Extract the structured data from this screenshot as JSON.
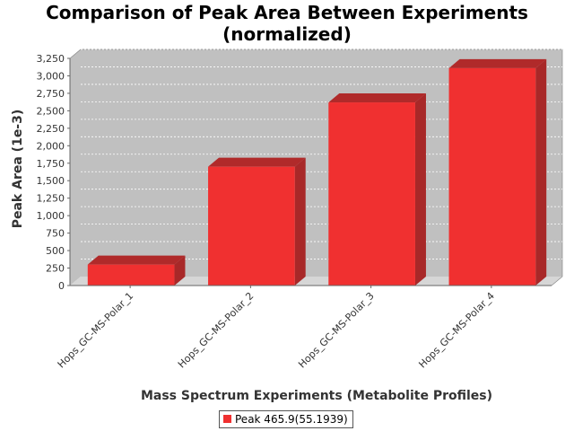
{
  "chart_data": {
    "type": "bar",
    "title_lines": [
      "Comparison of Peak Area Between Experiments",
      "(normalized)"
    ],
    "xlabel": "Mass Spectrum Experiments (Metabolite Profiles)",
    "ylabel": "Peak Area (1e-3)",
    "categories": [
      "Hops_GC-MS-Polar_1",
      "Hops_GC-MS-Polar_2",
      "Hops_GC-MS-Polar_3",
      "Hops_GC-MS-Polar_4"
    ],
    "series": [
      {
        "name": "Peak 465.9(55.1939)",
        "values": [
          300,
          1700,
          2620,
          3110
        ],
        "color": "#f03030"
      }
    ],
    "ylim": [
      0,
      3250
    ],
    "yticks": [
      0,
      250,
      500,
      750,
      1000,
      1250,
      1500,
      1750,
      2000,
      2250,
      2500,
      2750,
      3000,
      3250
    ],
    "ytick_labels": [
      "0",
      "250",
      "500",
      "750",
      "1,000",
      "1,250",
      "1,500",
      "1,750",
      "2,000",
      "2,250",
      "2,500",
      "2,750",
      "3,000",
      "3,250"
    ],
    "grid": true,
    "legend_position": "bottom",
    "three_d": true
  }
}
